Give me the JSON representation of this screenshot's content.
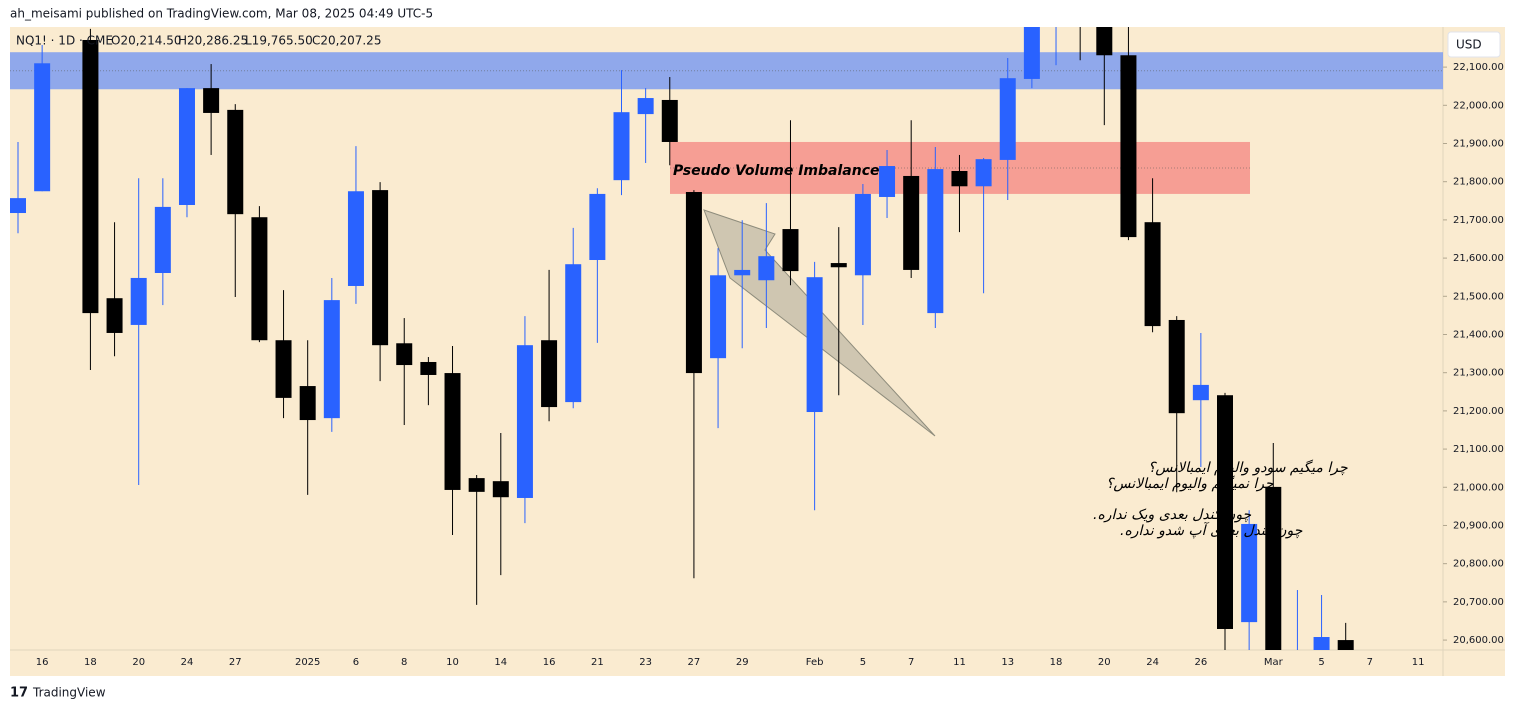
{
  "header": {
    "publisher": "ah_meisami published on TradingView.com, Mar 08, 2025 04:49 UTC-5",
    "symbol": "NQ1! · 1D · CME",
    "open": "O20,214.50",
    "high": "H20,286.25",
    "low": "L19,765.50",
    "close": "C20,207.25",
    "currency": "USD"
  },
  "footer": {
    "brand": "TradingView"
  },
  "chart_data": {
    "type": "candlestick",
    "categories": [
      null,
      "16",
      null,
      "18",
      null,
      "20",
      null,
      "24",
      null,
      "27",
      null,
      null,
      "2025",
      null,
      "6",
      null,
      "8",
      null,
      "10",
      null,
      "14",
      null,
      "16",
      null,
      "21",
      null,
      "23",
      null,
      "27",
      null,
      "29",
      null,
      null,
      "Feb",
      null,
      "5",
      null,
      "7",
      null,
      "11",
      null,
      "13",
      null,
      "18",
      null,
      "20",
      null,
      "24",
      null,
      "26",
      null,
      null,
      "Mar",
      null,
      "5",
      null,
      "7",
      null,
      "11"
    ],
    "series": [
      {
        "up_color": "#2962ff",
        "down_color": "#000000",
        "open": [
          21718,
          21775,
          null,
          22171,
          21495,
          21425,
          21561,
          21739,
          22045,
          21988,
          21707,
          21385,
          21265,
          21181,
          21527,
          21778,
          21377,
          21328,
          21299,
          21024,
          21016,
          20972,
          21385,
          21223,
          21595,
          21804,
          21977,
          22014,
          21773,
          21338,
          21555,
          21542,
          21676,
          21197,
          21587,
          21555,
          21760,
          21815,
          21456,
          21828,
          21788,
          21857,
          22069,
          22220,
          22280,
          22250,
          22131,
          21694,
          21438,
          21228,
          21241,
          20647,
          21001,
          20540,
          20560,
          20600,
          null,
          null,
          null
        ],
        "high": [
          21904,
          22158,
          null,
          22200,
          21694,
          21809,
          21809,
          22045,
          22108,
          22003,
          21736,
          21516,
          21385,
          21548,
          21893,
          21799,
          21443,
          21341,
          21370,
          21032,
          21142,
          21448,
          21569,
          21679,
          21783,
          22092,
          22045,
          22074,
          21778,
          21626,
          21699,
          21744,
          21961,
          21590,
          21681,
          21794,
          21883,
          21961,
          21891,
          21870,
          21862,
          22124,
          22260,
          22280,
          22300,
          22300,
          22230,
          21809,
          21448,
          21404,
          21247,
          20940,
          21116,
          20731,
          20718,
          20645,
          null,
          null,
          null
        ],
        "low": [
          21665,
          21775,
          null,
          21307,
          21343,
          21006,
          21477,
          21707,
          21870,
          21498,
          21380,
          21181,
          20980,
          21145,
          21480,
          21278,
          21163,
          21215,
          20875,
          20692,
          20770,
          20906,
          21173,
          21207,
          21378,
          21765,
          21849,
          21843,
          20762,
          21155,
          21364,
          21417,
          21529,
          20940,
          21241,
          21425,
          21705,
          21548,
          21417,
          21668,
          21508,
          21752,
          22045,
          22105,
          22118,
          21948,
          21647,
          21406,
          20987,
          21053,
          20570,
          20570,
          20540,
          20520,
          20540,
          20550,
          null,
          null,
          null
        ],
        "close": [
          21757,
          22110,
          null,
          21456,
          21404,
          21548,
          21734,
          22045,
          21980,
          21715,
          21385,
          21234,
          21176,
          21490,
          21775,
          21372,
          21320,
          21294,
          20993,
          20988,
          20974,
          21372,
          21210,
          21584,
          21768,
          21982,
          22019,
          21904,
          21299,
          21555,
          21569,
          21605,
          21566,
          21550,
          21576,
          21768,
          21841,
          21569,
          21833,
          21788,
          21859,
          22071,
          22240,
          22250,
          22240,
          22131,
          21655,
          21422,
          21194,
          21268,
          20629,
          20904,
          20560,
          20560,
          20608,
          20570,
          null,
          null,
          null
        ]
      }
    ],
    "ylim": [
      20574,
      22205
    ],
    "yticks": [
      {
        "value": 20600,
        "label": "20,600.00"
      },
      {
        "value": 20700,
        "label": "20,700.00"
      },
      {
        "value": 20800,
        "label": "20,800.00"
      },
      {
        "value": 20900,
        "label": "20,900.00"
      },
      {
        "value": 21000,
        "label": "21,000.00"
      },
      {
        "value": 21100,
        "label": "21,100.00"
      },
      {
        "value": 21200,
        "label": "21,200.00"
      },
      {
        "value": 21300,
        "label": "21,300.00"
      },
      {
        "value": 21400,
        "label": "21,400.00"
      },
      {
        "value": 21500,
        "label": "21,500.00"
      },
      {
        "value": 21600,
        "label": "21,600.00"
      },
      {
        "value": 21700,
        "label": "21,700.00"
      },
      {
        "value": 21800,
        "label": "21,800.00"
      },
      {
        "value": 21900,
        "label": "21,900.00"
      },
      {
        "value": 22000,
        "label": "22,000.00"
      },
      {
        "value": 22100,
        "label": "22,100.00"
      }
    ],
    "zones": [
      {
        "top": 22139,
        "bottom": 22042,
        "color": "#7d9cf0"
      },
      {
        "top": 21904,
        "bottom": 21768,
        "color": "#f49189",
        "label": "Pseudo Volume Imbalance"
      }
    ],
    "annotations": [
      "چرا میگیم سودو والیوم ایمبالانس؟",
      "چرا نمیگیم والیوم ایمبالانس؟",
      "چون کندل بعدی ویک نداره.",
      "چون کندل بعدی آپ شدو نداره."
    ]
  }
}
